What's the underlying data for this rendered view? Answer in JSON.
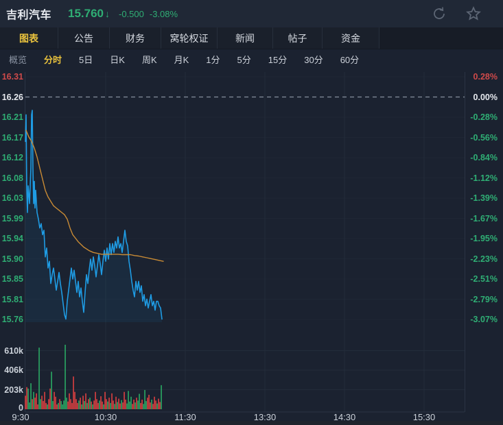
{
  "header": {
    "title": "吉利汽车",
    "price": "15.760",
    "arrow": "↓",
    "change": "-0.500",
    "change_pct": "-3.08%",
    "icons": [
      "refresh-icon",
      "star-icon"
    ]
  },
  "tabs": [
    {
      "name": "tab-chart",
      "label": "图表",
      "active": true
    },
    {
      "name": "tab-announcements",
      "label": "公告",
      "active": false
    },
    {
      "name": "tab-financials",
      "label": "财务",
      "active": false
    },
    {
      "name": "tab-warrants",
      "label": "窝轮权证",
      "active": false
    },
    {
      "name": "tab-news",
      "label": "新闻",
      "active": false
    },
    {
      "name": "tab-posts",
      "label": "帖子",
      "active": false
    },
    {
      "name": "tab-funds",
      "label": "资金",
      "active": false
    }
  ],
  "subtabs": [
    {
      "name": "subtab-overview",
      "label": "概览",
      "state": "muted"
    },
    {
      "name": "subtab-timeline",
      "label": "分时",
      "state": "active"
    },
    {
      "name": "subtab-5day",
      "label": "5日",
      "state": "normal"
    },
    {
      "name": "subtab-daily-k",
      "label": "日K",
      "state": "normal"
    },
    {
      "name": "subtab-weekly-k",
      "label": "周K",
      "state": "normal"
    },
    {
      "name": "subtab-monthly-k",
      "label": "月K",
      "state": "normal"
    },
    {
      "name": "subtab-1min",
      "label": "1分",
      "state": "normal"
    },
    {
      "name": "subtab-5min",
      "label": "5分",
      "state": "normal"
    },
    {
      "name": "subtab-15min",
      "label": "15分",
      "state": "normal"
    },
    {
      "name": "subtab-30min",
      "label": "30分",
      "state": "normal"
    },
    {
      "name": "subtab-60min",
      "label": "60分",
      "state": "normal"
    }
  ],
  "colors": {
    "up_red": "#cf4a4a",
    "down_green": "#2fae74",
    "flat_white": "#e6e9ee",
    "blue_line": "#1f9ce4",
    "avg_orange": "#c98b35",
    "vol_green": "#2aaa64",
    "vol_red": "#dd4040",
    "grid": "#232c3a",
    "axis_border": "#2b3444",
    "ref_dash": "#9aa3b1",
    "accent_yellow": "#e9c23d"
  },
  "chart_data": {
    "type": "line",
    "title": "分时 (intraday)",
    "prev_close": 16.26,
    "latest_price": 15.76,
    "y_axis_price_labels": [
      "16.31",
      "16.26",
      "16.21",
      "16.17",
      "16.12",
      "16.08",
      "16.03",
      "15.99",
      "15.94",
      "15.90",
      "15.85",
      "15.81",
      "15.76"
    ],
    "y_axis_pct_labels": [
      "0.28%",
      "0.00%",
      "-0.28%",
      "-0.56%",
      "-0.84%",
      "-1.12%",
      "-1.39%",
      "-1.67%",
      "-1.95%",
      "-2.23%",
      "-2.51%",
      "-2.79%",
      "-3.07%"
    ],
    "x_axis_labels": [
      "9:30",
      "10:30",
      "11:30",
      "13:30",
      "14:30",
      "15:30"
    ],
    "volume_axis_labels": [
      "610k",
      "406k",
      "203k",
      "0"
    ],
    "ylim_price": [
      15.76,
      16.31
    ],
    "series": [
      {
        "name": "price",
        "points": [
          [
            37,
            16.16
          ],
          [
            38,
            16.22
          ],
          [
            39,
            16.05
          ],
          [
            40,
            16.0
          ],
          [
            41,
            16.06
          ],
          [
            43,
            16.02
          ],
          [
            45,
            16.1
          ],
          [
            46,
            16.22
          ],
          [
            47,
            16.23
          ],
          [
            48,
            16.1
          ],
          [
            49,
            16.02
          ],
          [
            50,
            16.07
          ],
          [
            51,
            16.01
          ],
          [
            52,
            16.05
          ],
          [
            54,
            16.0
          ],
          [
            56,
            15.985
          ],
          [
            58,
            15.965
          ],
          [
            60,
            15.975
          ],
          [
            62,
            15.95
          ],
          [
            64,
            15.96
          ],
          [
            66,
            15.9
          ],
          [
            68,
            15.92
          ],
          [
            70,
            15.875
          ],
          [
            72,
            15.89
          ],
          [
            74,
            15.84
          ],
          [
            76,
            15.86
          ],
          [
            78,
            15.875
          ],
          [
            80,
            15.85
          ],
          [
            82,
            15.825
          ],
          [
            84,
            15.845
          ],
          [
            86,
            15.865
          ],
          [
            88,
            15.84
          ],
          [
            90,
            15.82
          ],
          [
            92,
            15.795
          ],
          [
            94,
            15.77
          ],
          [
            96,
            15.76
          ],
          [
            98,
            15.8
          ],
          [
            100,
            15.825
          ],
          [
            102,
            15.85
          ],
          [
            104,
            15.875
          ],
          [
            106,
            15.85
          ],
          [
            108,
            15.87
          ],
          [
            110,
            15.845
          ],
          [
            112,
            15.82
          ],
          [
            114,
            15.845
          ],
          [
            116,
            15.81
          ],
          [
            118,
            15.83
          ],
          [
            120,
            15.8
          ],
          [
            122,
            15.775
          ],
          [
            124,
            15.82
          ],
          [
            126,
            15.86
          ],
          [
            128,
            15.84
          ],
          [
            130,
            15.87
          ],
          [
            132,
            15.895
          ],
          [
            134,
            15.87
          ],
          [
            136,
            15.9
          ],
          [
            138,
            15.88
          ],
          [
            140,
            15.855
          ],
          [
            142,
            15.88
          ],
          [
            144,
            15.905
          ],
          [
            146,
            15.885
          ],
          [
            148,
            15.86
          ],
          [
            150,
            15.89
          ],
          [
            152,
            15.915
          ],
          [
            154,
            15.89
          ],
          [
            156,
            15.92
          ],
          [
            158,
            15.895
          ],
          [
            160,
            15.93
          ],
          [
            162,
            15.905
          ],
          [
            164,
            15.93
          ],
          [
            166,
            15.91
          ],
          [
            168,
            15.935
          ],
          [
            170,
            15.92
          ],
          [
            172,
            15.945
          ],
          [
            174,
            15.92
          ],
          [
            176,
            15.93
          ],
          [
            178,
            15.91
          ],
          [
            180,
            15.935
          ],
          [
            182,
            15.96
          ],
          [
            184,
            15.935
          ],
          [
            186,
            15.925
          ],
          [
            188,
            15.89
          ],
          [
            190,
            15.87
          ],
          [
            192,
            15.845
          ],
          [
            194,
            15.825
          ],
          [
            196,
            15.81
          ],
          [
            198,
            15.845
          ],
          [
            200,
            15.825
          ],
          [
            202,
            15.845
          ],
          [
            204,
            15.82
          ],
          [
            206,
            15.835
          ],
          [
            208,
            15.8
          ],
          [
            210,
            15.815
          ],
          [
            212,
            15.79
          ],
          [
            214,
            15.805
          ],
          [
            216,
            15.785
          ],
          [
            218,
            15.8
          ],
          [
            220,
            15.815
          ],
          [
            222,
            15.79
          ],
          [
            224,
            15.8
          ],
          [
            226,
            15.78
          ],
          [
            228,
            15.8
          ],
          [
            230,
            15.8
          ],
          [
            232,
            15.79
          ],
          [
            234,
            15.785
          ],
          [
            236,
            15.76
          ]
        ]
      },
      {
        "name": "average",
        "points": [
          [
            38,
            16.185
          ],
          [
            42,
            16.17
          ],
          [
            46,
            16.16
          ],
          [
            50,
            16.145
          ],
          [
            54,
            16.125
          ],
          [
            58,
            16.1
          ],
          [
            62,
            16.075
          ],
          [
            66,
            16.05
          ],
          [
            70,
            16.035
          ],
          [
            74,
            16.025
          ],
          [
            78,
            16.015
          ],
          [
            82,
            16.01
          ],
          [
            86,
            16.005
          ],
          [
            90,
            16.0
          ],
          [
            94,
            15.995
          ],
          [
            98,
            15.985
          ],
          [
            102,
            15.965
          ],
          [
            106,
            15.95
          ],
          [
            110,
            15.942
          ],
          [
            114,
            15.934
          ],
          [
            118,
            15.928
          ],
          [
            122,
            15.922
          ],
          [
            126,
            15.918
          ],
          [
            130,
            15.914
          ],
          [
            136,
            15.91
          ],
          [
            142,
            15.908
          ],
          [
            148,
            15.906
          ],
          [
            154,
            15.906
          ],
          [
            160,
            15.906
          ],
          [
            166,
            15.906
          ],
          [
            172,
            15.906
          ],
          [
            178,
            15.905
          ],
          [
            184,
            15.905
          ],
          [
            190,
            15.905
          ],
          [
            196,
            15.903
          ],
          [
            202,
            15.902
          ],
          [
            208,
            15.9
          ],
          [
            214,
            15.898
          ],
          [
            220,
            15.896
          ],
          [
            226,
            15.894
          ],
          [
            232,
            15.892
          ],
          [
            238,
            15.89
          ]
        ]
      }
    ],
    "volume_bars_k": [
      [
        140,
        "r"
      ],
      [
        230,
        "r"
      ],
      [
        215,
        "g"
      ],
      [
        70,
        "g"
      ],
      [
        270,
        "g"
      ],
      [
        105,
        "r"
      ],
      [
        180,
        "g"
      ],
      [
        120,
        "r"
      ],
      [
        165,
        "r"
      ],
      [
        50,
        "r"
      ],
      [
        640,
        "g"
      ],
      [
        105,
        "g"
      ],
      [
        140,
        "r"
      ],
      [
        85,
        "r"
      ],
      [
        180,
        "r"
      ],
      [
        65,
        "r"
      ],
      [
        50,
        "g"
      ],
      [
        105,
        "r"
      ],
      [
        215,
        "r"
      ],
      [
        390,
        "g"
      ],
      [
        85,
        "g"
      ],
      [
        180,
        "r"
      ],
      [
        130,
        "r"
      ],
      [
        50,
        "r"
      ],
      [
        65,
        "g"
      ],
      [
        105,
        "r"
      ],
      [
        85,
        "g"
      ],
      [
        50,
        "g"
      ],
      [
        90,
        "g"
      ],
      [
        670,
        "g"
      ],
      [
        120,
        "g"
      ],
      [
        80,
        "r"
      ],
      [
        165,
        "r"
      ],
      [
        105,
        "r"
      ],
      [
        65,
        "r"
      ],
      [
        340,
        "r"
      ],
      [
        180,
        "r"
      ],
      [
        105,
        "r"
      ],
      [
        65,
        "r"
      ],
      [
        90,
        "g"
      ],
      [
        120,
        "r"
      ],
      [
        50,
        "g"
      ],
      [
        140,
        "r"
      ],
      [
        85,
        "g"
      ],
      [
        165,
        "r"
      ],
      [
        65,
        "g"
      ],
      [
        105,
        "r"
      ],
      [
        120,
        "g"
      ],
      [
        80,
        "r"
      ],
      [
        50,
        "g"
      ],
      [
        90,
        "r"
      ],
      [
        180,
        "r"
      ],
      [
        105,
        "r"
      ],
      [
        65,
        "r"
      ],
      [
        90,
        "g"
      ],
      [
        135,
        "r"
      ],
      [
        80,
        "r"
      ],
      [
        50,
        "g"
      ],
      [
        180,
        "r"
      ],
      [
        105,
        "r"
      ],
      [
        80,
        "g"
      ],
      [
        120,
        "r"
      ],
      [
        65,
        "g"
      ],
      [
        165,
        "r"
      ],
      [
        90,
        "r"
      ],
      [
        55,
        "g"
      ],
      [
        130,
        "r"
      ],
      [
        75,
        "g"
      ],
      [
        110,
        "r"
      ],
      [
        60,
        "r"
      ],
      [
        95,
        "g"
      ],
      [
        70,
        "r"
      ],
      [
        180,
        "r"
      ],
      [
        100,
        "r"
      ],
      [
        60,
        "g"
      ],
      [
        190,
        "g"
      ],
      [
        80,
        "g"
      ],
      [
        130,
        "g"
      ],
      [
        55,
        "r"
      ],
      [
        100,
        "r"
      ],
      [
        70,
        "g"
      ],
      [
        120,
        "r"
      ],
      [
        90,
        "g"
      ],
      [
        160,
        "g"
      ],
      [
        65,
        "r"
      ],
      [
        100,
        "r"
      ],
      [
        55,
        "g"
      ],
      [
        200,
        "g"
      ],
      [
        85,
        "g"
      ],
      [
        120,
        "r"
      ],
      [
        150,
        "r"
      ],
      [
        70,
        "r"
      ],
      [
        100,
        "g"
      ],
      [
        55,
        "r"
      ],
      [
        130,
        "r"
      ],
      [
        90,
        "r"
      ],
      [
        60,
        "g"
      ],
      [
        110,
        "r"
      ],
      [
        75,
        "r"
      ],
      [
        250,
        "g"
      ]
    ]
  }
}
